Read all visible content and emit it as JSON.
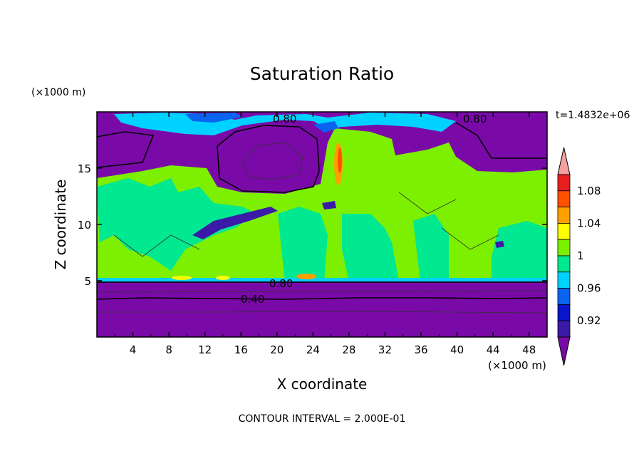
{
  "chart_data": {
    "type": "contour-heatmap",
    "title": "Saturation Ratio",
    "xlabel": "X coordinate",
    "ylabel": "Z coordinate",
    "x_unit": "(×1000 m)",
    "y_unit": "(×1000 m)",
    "time_label": "t=1.4832e+06",
    "contour_interval_label": "CONTOUR INTERVAL = 2.000E-01",
    "xlim": [
      0,
      50
    ],
    "ylim": [
      0,
      20
    ],
    "x_ticks": [
      "4",
      "8",
      "12",
      "16",
      "20",
      "24",
      "28",
      "32",
      "36",
      "40",
      "44",
      "48"
    ],
    "y_ticks": [
      "5",
      "10",
      "15"
    ],
    "contour_line_labels": [
      "0.80",
      "0.80",
      "0.80",
      "0.40"
    ],
    "colorbar": {
      "labels": [
        "1.08",
        "1.04",
        "1",
        "0.96",
        "0.92"
      ],
      "levels": [
        0.9,
        0.92,
        0.94,
        0.96,
        0.98,
        1.0,
        1.02,
        1.04,
        1.06,
        1.08,
        1.1
      ],
      "colors": [
        "#7a0aa8",
        "#3c1aa8",
        "#0a14c8",
        "#0a64f0",
        "#00d2ff",
        "#00e890",
        "#7cf000",
        "#ffff00",
        "#ffa000",
        "#ff5000",
        "#e61e1e",
        "#f5a0a0"
      ]
    }
  }
}
